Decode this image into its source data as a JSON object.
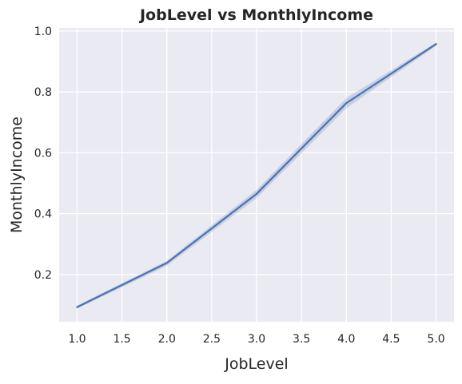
{
  "chart_data": {
    "type": "line",
    "title": "JobLevel vs MonthlyIncome",
    "xlabel": "JobLevel",
    "ylabel": "MonthlyIncome",
    "xlim": [
      0.8,
      5.2
    ],
    "ylim": [
      0.045,
      1.01
    ],
    "x_ticks": [
      "1.0",
      "1.5",
      "2.0",
      "2.5",
      "3.0",
      "3.5",
      "4.0",
      "4.5",
      "5.0"
    ],
    "y_ticks": [
      "0.2",
      "0.4",
      "0.6",
      "0.8",
      "1.0"
    ],
    "grid": true,
    "series": [
      {
        "x": [
          1,
          2,
          3,
          4,
          5
        ],
        "y": [
          0.093,
          0.238,
          0.465,
          0.763,
          0.957
        ],
        "ci_low": [
          0.088,
          0.229,
          0.451,
          0.746,
          0.951
        ],
        "ci_high": [
          0.098,
          0.245,
          0.478,
          0.78,
          0.962
        ]
      }
    ],
    "colors": {
      "background": "#eaeaf2",
      "grid": "#ffffff",
      "line": "#4c72b0",
      "band": "#4c72b0"
    }
  }
}
